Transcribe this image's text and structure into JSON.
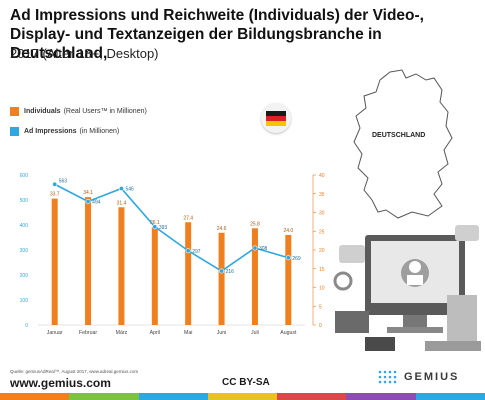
{
  "header": {
    "title": "Ad Impressions und Reichweite (Individuals) der Video-, Display- und Textanzeigen der Bildungsbranche in Deutschland,",
    "subtitle": "2017 (Alter 18+, Desktop)"
  },
  "legend": {
    "individuals_label": "Individuals",
    "individuals_note": "(Real Users™ in Millionen)",
    "impressions_label": "Ad Impressions",
    "impressions_note": "(in Millionen)"
  },
  "map": {
    "label": "DEUTSCHLAND"
  },
  "colors": {
    "bars": "#f07f1f",
    "line": "#2ea8df",
    "left_axis": "#2ea8df",
    "right_axis": "#f07f1f"
  },
  "chart_data": {
    "type": "bar",
    "categories": [
      "Januar",
      "Februar",
      "März",
      "April",
      "Mai",
      "Juni",
      "Juli",
      "August"
    ],
    "series": [
      {
        "name": "Individuals",
        "type": "bar",
        "axis": "right",
        "values": [
          33.7,
          34.1,
          31.4,
          26.1,
          27.4,
          24.6,
          25.8,
          24.0
        ]
      },
      {
        "name": "Ad Impressions",
        "type": "line",
        "axis": "left",
        "values": [
          563,
          494,
          546,
          393,
          297,
          216,
          308,
          269
        ]
      }
    ],
    "left_axis": {
      "ylim": [
        0,
        600
      ],
      "ticks": [
        0,
        100,
        200,
        300,
        400,
        500,
        600
      ]
    },
    "right_axis": {
      "ylim": [
        0,
        40
      ],
      "ticks": [
        0,
        5,
        10,
        15,
        20,
        25,
        30,
        35,
        40
      ]
    },
    "grid": false
  },
  "footer": {
    "source": "Quelle: gemiusAdReal™, August 2017, www.adreal.gemius.com",
    "url": "www.gemius.com",
    "license": "CC BY-SA",
    "brand": "GEMIUS"
  },
  "bottom_bar_colors": [
    "#f07f1f",
    "#7dc243",
    "#2ea8df",
    "#e8c21f",
    "#e0454b",
    "#8c4fb0",
    "#2ea8df"
  ]
}
